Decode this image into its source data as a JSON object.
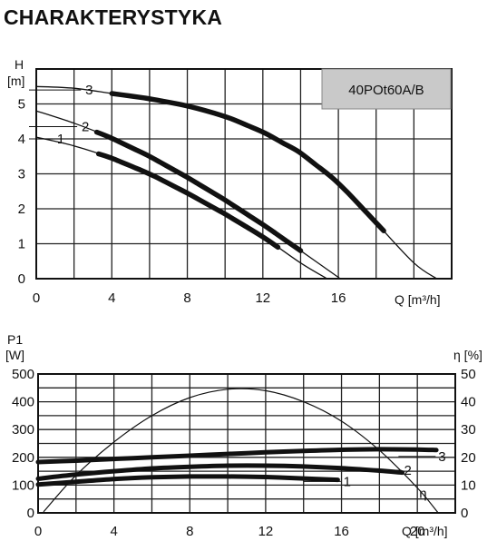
{
  "page": {
    "title": "CHARAKTERYSTYKA"
  },
  "chart_data": [
    {
      "type": "line",
      "model_label": "40POt60A/B",
      "ylabel_top": "H",
      "ylabel_unit": "[m]",
      "xlabel": "Q [m³/h]",
      "xlim": [
        0,
        22
      ],
      "ylim": [
        0,
        6
      ],
      "x_ticks": [
        0,
        4,
        8,
        12,
        16
      ],
      "y_ticks": [
        0,
        1,
        2,
        3,
        4,
        5
      ],
      "grid": true,
      "series": [
        {
          "name": "1",
          "x": [
            0,
            2,
            4,
            6,
            8,
            10,
            12,
            14,
            15.4
          ],
          "y": [
            4.05,
            3.8,
            3.45,
            3.0,
            2.45,
            1.85,
            1.2,
            0.45,
            0
          ]
        },
        {
          "name": "2",
          "x": [
            0,
            2,
            4,
            6,
            8,
            10,
            12,
            14,
            16.1
          ],
          "y": [
            4.8,
            4.45,
            4.02,
            3.5,
            2.9,
            2.25,
            1.55,
            0.8,
            0
          ]
        },
        {
          "name": "3",
          "x": [
            0,
            2,
            4,
            6,
            8,
            10,
            12,
            14,
            16,
            18,
            20,
            21.2
          ],
          "y": [
            5.5,
            5.45,
            5.3,
            5.15,
            4.95,
            4.65,
            4.2,
            3.6,
            2.75,
            1.6,
            0.45,
            0
          ]
        }
      ],
      "curve_labels": [
        {
          "text": "1",
          "x": 1.3,
          "y": 4.0
        },
        {
          "text": "2",
          "x": 2.6,
          "y": 4.35
        },
        {
          "text": "3",
          "x": 2.8,
          "y": 5.4
        }
      ],
      "operating_ranges": [
        {
          "series": "1",
          "from": 3.3,
          "to": 12.8
        },
        {
          "series": "2",
          "from": 3.2,
          "to": 14.0
        },
        {
          "series": "3",
          "from": 4.0,
          "to": 18.4
        }
      ]
    },
    {
      "type": "line",
      "ylabel_top": "P1",
      "ylabel_unit": "[W]",
      "y2label_top": "η [%]",
      "xlabel": "Q [m³/h]",
      "xlim": [
        0,
        22
      ],
      "ylim": [
        0,
        500
      ],
      "y2lim": [
        0,
        50
      ],
      "x_ticks": [
        0,
        4,
        8,
        12,
        16,
        20
      ],
      "y_ticks": [
        0,
        100,
        200,
        300,
        400,
        500
      ],
      "y2_ticks": [
        0,
        10,
        20,
        30,
        40,
        50
      ],
      "grid": true,
      "series": [
        {
          "name": "1",
          "x": [
            0,
            2,
            4,
            6,
            8,
            10,
            12,
            14,
            15.8
          ],
          "y": [
            102,
            112,
            122,
            128,
            131,
            131,
            129,
            124,
            119
          ]
        },
        {
          "name": "2",
          "x": [
            0,
            2,
            4,
            6,
            8,
            10,
            12,
            14,
            16,
            18,
            19.2
          ],
          "y": [
            123,
            138,
            150,
            160,
            166,
            170,
            170,
            167,
            161,
            152,
            145
          ]
        },
        {
          "name": "3",
          "x": [
            0,
            2,
            4,
            6,
            8,
            10,
            12,
            14,
            16,
            18,
            20,
            21.0
          ],
          "y": [
            183,
            188,
            194,
            200,
            206,
            212,
            218,
            223,
            227,
            229,
            228,
            226
          ]
        },
        {
          "name": "η",
          "axis": "right",
          "x": [
            0.3,
            2,
            4,
            6,
            8,
            10,
            12,
            14,
            16,
            18,
            20,
            21.1
          ],
          "y": [
            0.5,
            13.5,
            25.5,
            35,
            41.5,
            44.5,
            44,
            40,
            33,
            22.5,
            9,
            0
          ]
        }
      ],
      "curve_labels": [
        {
          "text": "1",
          "x": 16.3,
          "y": 100
        },
        {
          "text": "2",
          "x": 19.5,
          "y": 140
        },
        {
          "text": "3",
          "x": 21.3,
          "y": 190
        },
        {
          "text": "η",
          "x": 20.3,
          "y": 8
        }
      ]
    }
  ]
}
